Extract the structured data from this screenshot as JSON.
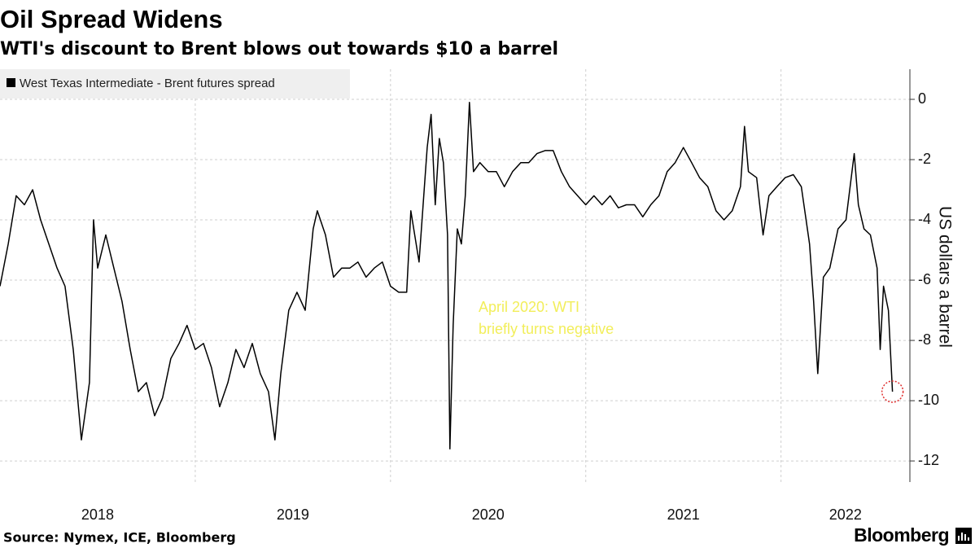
{
  "chart_data": {
    "type": "line",
    "title": "Oil Spread Widens",
    "subtitle": "WTI's discount to Brent blows out towards $10 a barrel",
    "y_label": "US dollars a barrel",
    "source": "Source: Nymex, ICE, Bloomberg",
    "brand": "Bloomberg",
    "annotation": [
      "April 2020: WTI",
      "briefly turns negative"
    ],
    "annotation_color": "#f2ee5a",
    "legend": "top-left",
    "grid": true,
    "xlim": [
      2018,
      2022.66
    ],
    "xticks": [
      {
        "value": 2018.5,
        "label": "2018"
      },
      {
        "value": 2019.5,
        "label": "2019"
      },
      {
        "value": 2020.5,
        "label": "2020"
      },
      {
        "value": 2021.5,
        "label": "2021"
      },
      {
        "value": 2022.33,
        "label": "2022"
      }
    ],
    "xgrid": [
      2019,
      2020,
      2021,
      2022
    ],
    "ylim": [
      -12.7,
      1.0
    ],
    "yticks": [
      0,
      -2,
      -4,
      -6,
      -8,
      -10,
      -12
    ],
    "x": [
      2018.0,
      2018.042,
      2018.083,
      2018.125,
      2018.167,
      2018.208,
      2018.25,
      2018.292,
      2018.333,
      2018.375,
      2018.417,
      2018.458,
      2018.479,
      2018.5,
      2018.542,
      2018.583,
      2018.625,
      2018.667,
      2018.708,
      2018.75,
      2018.792,
      2018.833,
      2018.875,
      2018.917,
      2018.958,
      2019.0,
      2019.042,
      2019.083,
      2019.125,
      2019.167,
      2019.208,
      2019.25,
      2019.292,
      2019.333,
      2019.375,
      2019.408,
      2019.438,
      2019.479,
      2019.521,
      2019.563,
      2019.604,
      2019.625,
      2019.667,
      2019.708,
      2019.75,
      2019.792,
      2019.833,
      2019.875,
      2019.917,
      2019.958,
      2020.0,
      2020.042,
      2020.083,
      2020.104,
      2020.146,
      2020.188,
      2020.208,
      2020.229,
      2020.25,
      2020.271,
      2020.292,
      2020.304,
      2020.321,
      2020.342,
      2020.363,
      2020.383,
      2020.404,
      2020.425,
      2020.458,
      2020.5,
      2020.542,
      2020.583,
      2020.625,
      2020.667,
      2020.708,
      2020.75,
      2020.792,
      2020.833,
      2020.875,
      2020.917,
      2020.958,
      2021.0,
      2021.042,
      2021.083,
      2021.125,
      2021.167,
      2021.208,
      2021.25,
      2021.292,
      2021.333,
      2021.375,
      2021.417,
      2021.458,
      2021.5,
      2021.542,
      2021.583,
      2021.625,
      2021.667,
      2021.708,
      2021.75,
      2021.792,
      2021.813,
      2021.833,
      2021.875,
      2021.908,
      2021.938,
      2021.979,
      2022.021,
      2022.063,
      2022.104,
      2022.146,
      2022.167,
      2022.188,
      2022.217,
      2022.25,
      2022.292,
      2022.333,
      2022.375,
      2022.396,
      2022.425,
      2022.458,
      2022.492,
      2022.508,
      2022.525,
      2022.55,
      2022.571
    ],
    "series": [
      {
        "name": "West Texas Intermediate - Brent futures spread",
        "color": "#000000",
        "values": [
          -6.2,
          -4.8,
          -3.2,
          -3.5,
          -3.0,
          -4.0,
          -4.8,
          -5.6,
          -6.2,
          -8.3,
          -11.3,
          -9.4,
          -4.0,
          -5.6,
          -4.5,
          -5.6,
          -6.7,
          -8.3,
          -9.7,
          -9.4,
          -10.5,
          -9.9,
          -8.6,
          -8.1,
          -7.5,
          -8.3,
          -8.1,
          -8.9,
          -10.2,
          -9.4,
          -8.3,
          -8.9,
          -8.1,
          -9.1,
          -9.7,
          -11.3,
          -9.1,
          -7.0,
          -6.4,
          -7.0,
          -4.3,
          -3.7,
          -4.5,
          -5.9,
          -5.6,
          -5.6,
          -5.4,
          -5.9,
          -5.6,
          -5.4,
          -6.2,
          -6.4,
          -6.4,
          -3.7,
          -5.4,
          -1.6,
          -0.5,
          -3.5,
          -1.3,
          -2.1,
          -4.5,
          -11.6,
          -7.5,
          -4.3,
          -4.8,
          -3.2,
          -0.1,
          -2.4,
          -2.1,
          -2.4,
          -2.4,
          -2.9,
          -2.4,
          -2.1,
          -2.1,
          -1.8,
          -1.7,
          -1.7,
          -2.4,
          -2.9,
          -3.2,
          -3.5,
          -3.2,
          -3.5,
          -3.2,
          -3.6,
          -3.5,
          -3.5,
          -3.9,
          -3.5,
          -3.2,
          -2.4,
          -2.1,
          -1.6,
          -2.1,
          -2.6,
          -2.9,
          -3.7,
          -4.0,
          -3.7,
          -2.9,
          -0.9,
          -2.4,
          -2.6,
          -4.5,
          -3.2,
          -2.9,
          -2.6,
          -2.5,
          -2.9,
          -4.8,
          -6.7,
          -9.1,
          -5.9,
          -5.6,
          -4.3,
          -4.0,
          -1.8,
          -3.5,
          -4.3,
          -4.5,
          -5.6,
          -8.3,
          -6.2,
          -7.0,
          -9.7
        ]
      }
    ]
  }
}
